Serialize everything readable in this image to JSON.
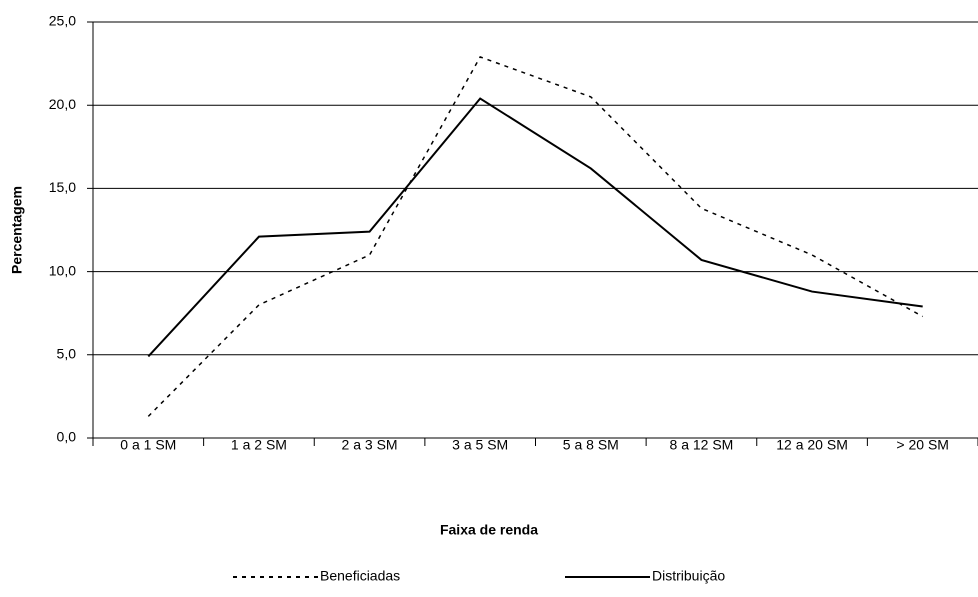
{
  "chart_data": {
    "type": "line",
    "x_label": "Faixa de renda",
    "y_label": "Percentagem",
    "categories": [
      "0 a 1 SM",
      "1 a 2 SM",
      "2 a 3 SM",
      "3 a 5 SM",
      "5 a 8 SM",
      "8 a 12 SM",
      "12 a 20 SM",
      "> 20 SM"
    ],
    "series": [
      {
        "name": "Beneficiadas",
        "color": "#000000",
        "dash": "dotted",
        "values": [
          1.3,
          8.0,
          11.0,
          22.9,
          20.5,
          13.8,
          11.0,
          7.3
        ]
      },
      {
        "name": "Distribuição",
        "color": "#000000",
        "dash": "solid",
        "values": [
          4.9,
          12.1,
          12.4,
          20.4,
          16.2,
          10.7,
          8.8,
          7.9
        ]
      }
    ],
    "ylim": [
      0,
      25
    ],
    "yticks": [
      {
        "value": 0,
        "label": "0,0"
      },
      {
        "value": 5,
        "label": "5,0"
      },
      {
        "value": 10,
        "label": "10,0"
      },
      {
        "value": 15,
        "label": "15,0"
      },
      {
        "value": 20,
        "label": "20,0"
      },
      {
        "value": 25,
        "label": "25,0"
      }
    ],
    "grid": true,
    "legend": "bottom"
  }
}
